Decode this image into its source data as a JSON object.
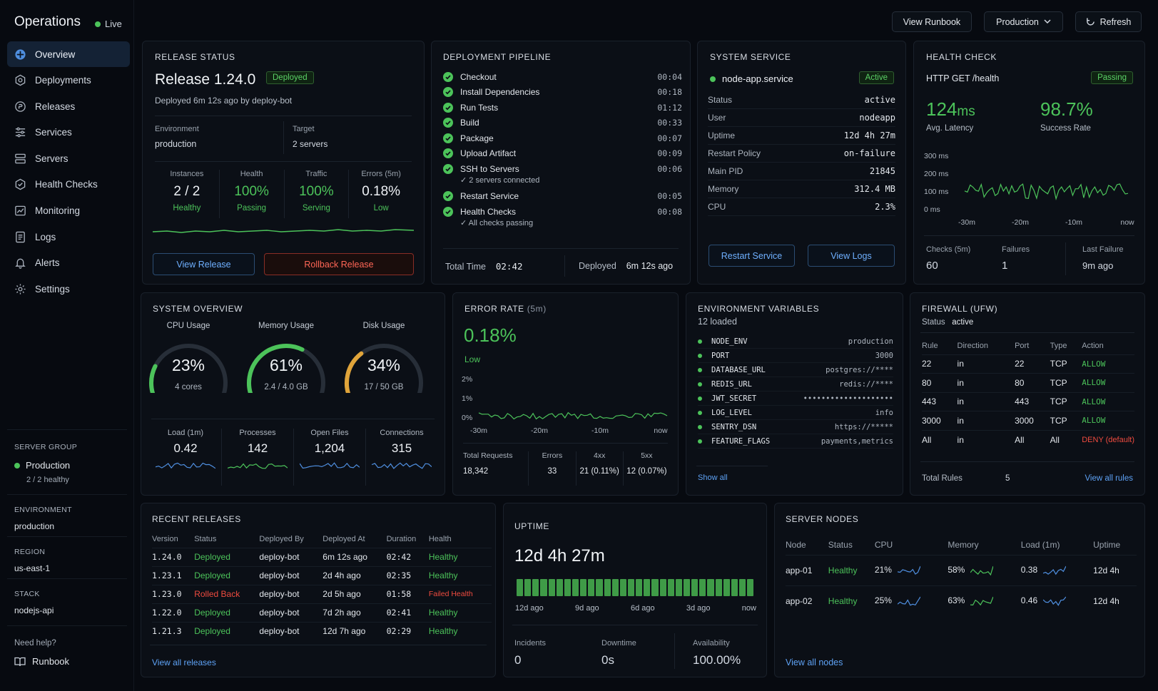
{
  "app": {
    "title": "Operations",
    "live": "Live"
  },
  "nav": [
    {
      "label": "Overview"
    },
    {
      "label": "Deployments"
    },
    {
      "label": "Releases"
    },
    {
      "label": "Services"
    },
    {
      "label": "Servers"
    },
    {
      "label": "Health Checks"
    },
    {
      "label": "Monitoring"
    },
    {
      "label": "Logs"
    },
    {
      "label": "Alerts"
    },
    {
      "label": "Settings"
    }
  ],
  "sidebar": {
    "server_group_label": "SERVER GROUP",
    "server_group": "Production",
    "server_group_sub": "2 / 2 healthy",
    "env_label": "ENVIRONMENT",
    "env": "production",
    "region_label": "REGION",
    "region": "us-east-1",
    "stack_label": "STACK",
    "stack": "nodejs-api",
    "help": "Need help?",
    "runbook": "Runbook"
  },
  "header": {
    "view_runbook": "View Runbook",
    "env_select": "Production",
    "refresh": "Refresh"
  },
  "release": {
    "title": "RELEASE STATUS",
    "name": "Release 1.24.0",
    "badge": "Deployed",
    "deployed": "Deployed 6m 12s ago by deploy-bot",
    "env_label": "Environment",
    "env": "production",
    "target_label": "Target",
    "target": "2 servers",
    "metrics": [
      {
        "label": "Instances",
        "value": "2 / 2",
        "sub": "Healthy"
      },
      {
        "label": "Health",
        "value": "100%",
        "sub": "Passing"
      },
      {
        "label": "Traffic",
        "value": "100%",
        "sub": "Serving"
      },
      {
        "label": "Errors (5m)",
        "value": "0.18%",
        "sub": "Low"
      }
    ],
    "view_btn": "View Release",
    "rollback_btn": "Rollback Release"
  },
  "pipeline": {
    "title": "DEPLOYMENT PIPELINE",
    "steps": [
      {
        "name": "Checkout",
        "time": "00:04"
      },
      {
        "name": "Install Dependencies",
        "time": "00:18"
      },
      {
        "name": "Run Tests",
        "time": "01:12"
      },
      {
        "name": "Build",
        "time": "00:33"
      },
      {
        "name": "Package",
        "time": "00:07"
      },
      {
        "name": "Upload Artifact",
        "time": "00:09"
      },
      {
        "name": "SSH to Servers",
        "time": "00:06",
        "note": "✓ 2 servers connected"
      },
      {
        "name": "Restart Service",
        "time": "00:05"
      },
      {
        "name": "Health Checks",
        "time": "00:08",
        "note": "✓ All checks passing"
      }
    ],
    "total_label": "Total Time",
    "total": "02:42",
    "deployed_label": "Deployed",
    "deployed": "6m 12s ago"
  },
  "service": {
    "title": "SYSTEM SERVICE",
    "name": "node-app.service",
    "badge": "Active",
    "rows": [
      {
        "k": "Status",
        "v": "active"
      },
      {
        "k": "User",
        "v": "nodeapp"
      },
      {
        "k": "Uptime",
        "v": "12d 4h 27m"
      },
      {
        "k": "Restart Policy",
        "v": "on-failure"
      },
      {
        "k": "Main PID",
        "v": "21845"
      },
      {
        "k": "Memory",
        "v": "312.4 MB"
      },
      {
        "k": "CPU",
        "v": "2.3%"
      }
    ],
    "restart_btn": "Restart Service",
    "logs_btn": "View Logs"
  },
  "health": {
    "title": "HEALTH CHECK",
    "endpoint": "HTTP GET /health",
    "badge": "Passing",
    "latency": "124",
    "latency_unit": "ms",
    "latency_label": "Avg. Latency",
    "success": "98.7%",
    "success_label": "Success Rate",
    "y_ticks": [
      "300 ms",
      "200 ms",
      "100 ms",
      "0 ms"
    ],
    "x_ticks": [
      "-30m",
      "-20m",
      "-10m",
      "now"
    ],
    "checks_label": "Checks (5m)",
    "checks": "60",
    "failures_label": "Failures",
    "failures": "1",
    "last_label": "Last Failure",
    "last": "9m ago"
  },
  "overview": {
    "title": "SYSTEM OVERVIEW",
    "gauges": [
      {
        "label": "CPU Usage",
        "value": "23%",
        "sub": "4 cores",
        "pct": 23,
        "color": "#4cc35a"
      },
      {
        "label": "Memory Usage",
        "value": "61%",
        "sub": "2.4 / 4.0 GB",
        "pct": 61,
        "color": "#4cc35a"
      },
      {
        "label": "Disk Usage",
        "value": "34%",
        "sub": "17 / 50 GB",
        "pct": 34,
        "color": "#e0a43a"
      }
    ],
    "stats": [
      {
        "label": "Load (1m)",
        "value": "0.42",
        "color": "#4f8fe0"
      },
      {
        "label": "Processes",
        "value": "142",
        "color": "#4cc35a"
      },
      {
        "label": "Open Files",
        "value": "1,204",
        "color": "#4f8fe0"
      },
      {
        "label": "Connections",
        "value": "315",
        "color": "#4f8fe0"
      }
    ]
  },
  "errors": {
    "title": "ERROR RATE",
    "window": "(5m)",
    "value": "0.18%",
    "level": "Low",
    "y_ticks": [
      "2%",
      "1%",
      "0%"
    ],
    "x_ticks": [
      "-30m",
      "-20m",
      "-10m",
      "now"
    ],
    "stats": [
      {
        "label": "Total Requests",
        "value": "18,342"
      },
      {
        "label": "Errors",
        "value": "33"
      },
      {
        "label": "4xx",
        "value": "21 (0.11%)"
      },
      {
        "label": "5xx",
        "value": "12 (0.07%)"
      }
    ]
  },
  "env": {
    "title": "ENVIRONMENT VARIABLES",
    "count": "12 loaded",
    "vars": [
      {
        "k": "NODE_ENV",
        "v": "production"
      },
      {
        "k": "PORT",
        "v": "3000"
      },
      {
        "k": "DATABASE_URL",
        "v": "postgres://****"
      },
      {
        "k": "REDIS_URL",
        "v": "redis://****"
      },
      {
        "k": "JWT_SECRET",
        "v": "••••••••••••••••••••"
      },
      {
        "k": "LOG_LEVEL",
        "v": "info"
      },
      {
        "k": "SENTRY_DSN",
        "v": "https://*****"
      },
      {
        "k": "FEATURE_FLAGS",
        "v": "payments,metrics"
      }
    ],
    "show_all": "Show all"
  },
  "firewall": {
    "title": "FIREWALL (UFW)",
    "status_label": "Status",
    "status": "active",
    "headers": [
      "Rule",
      "Direction",
      "Port",
      "Type",
      "Action"
    ],
    "rows": [
      [
        "22",
        "in",
        "22",
        "TCP",
        "ALLOW"
      ],
      [
        "80",
        "in",
        "80",
        "TCP",
        "ALLOW"
      ],
      [
        "443",
        "in",
        "443",
        "TCP",
        "ALLOW"
      ],
      [
        "3000",
        "in",
        "3000",
        "TCP",
        "ALLOW"
      ],
      [
        "All",
        "in",
        "All",
        "All",
        "DENY (default)"
      ]
    ],
    "total_label": "Total Rules",
    "total": "5",
    "view_all": "View all rules"
  },
  "releases": {
    "title": "RECENT RELEASES",
    "headers": [
      "Version",
      "Status",
      "Deployed By",
      "Deployed At",
      "Duration",
      "Health"
    ],
    "rows": [
      [
        "1.24.0",
        "Deployed",
        "deploy-bot",
        "6m 12s ago",
        "02:42",
        "Healthy"
      ],
      [
        "1.23.1",
        "Deployed",
        "deploy-bot",
        "2d 4h ago",
        "02:35",
        "Healthy"
      ],
      [
        "1.23.0",
        "Rolled Back",
        "deploy-bot",
        "2d 5h ago",
        "01:58",
        "Failed Health"
      ],
      [
        "1.22.0",
        "Deployed",
        "deploy-bot",
        "7d 2h ago",
        "02:41",
        "Healthy"
      ],
      [
        "1.21.3",
        "Deployed",
        "deploy-bot",
        "12d 7h ago",
        "02:29",
        "Healthy"
      ]
    ],
    "view_all": "View all releases"
  },
  "uptime": {
    "title": "UPTIME",
    "value": "12d 4h 27m",
    "x_ticks": [
      "12d ago",
      "9d ago",
      "6d ago",
      "3d ago",
      "now"
    ],
    "incidents_label": "Incidents",
    "incidents": "0",
    "downtime_label": "Downtime",
    "downtime": "0s",
    "availability_label": "Availability",
    "availability": "100.00%"
  },
  "nodes": {
    "title": "SERVER NODES",
    "headers": [
      "Node",
      "Status",
      "CPU",
      "Memory",
      "Load (1m)",
      "Uptime"
    ],
    "rows": [
      [
        "app-01",
        "Healthy",
        "21%",
        "58%",
        "0.38",
        "12d 4h"
      ],
      [
        "app-02",
        "Healthy",
        "25%",
        "63%",
        "0.46",
        "12d 4h"
      ]
    ],
    "view_all": "View all nodes"
  }
}
